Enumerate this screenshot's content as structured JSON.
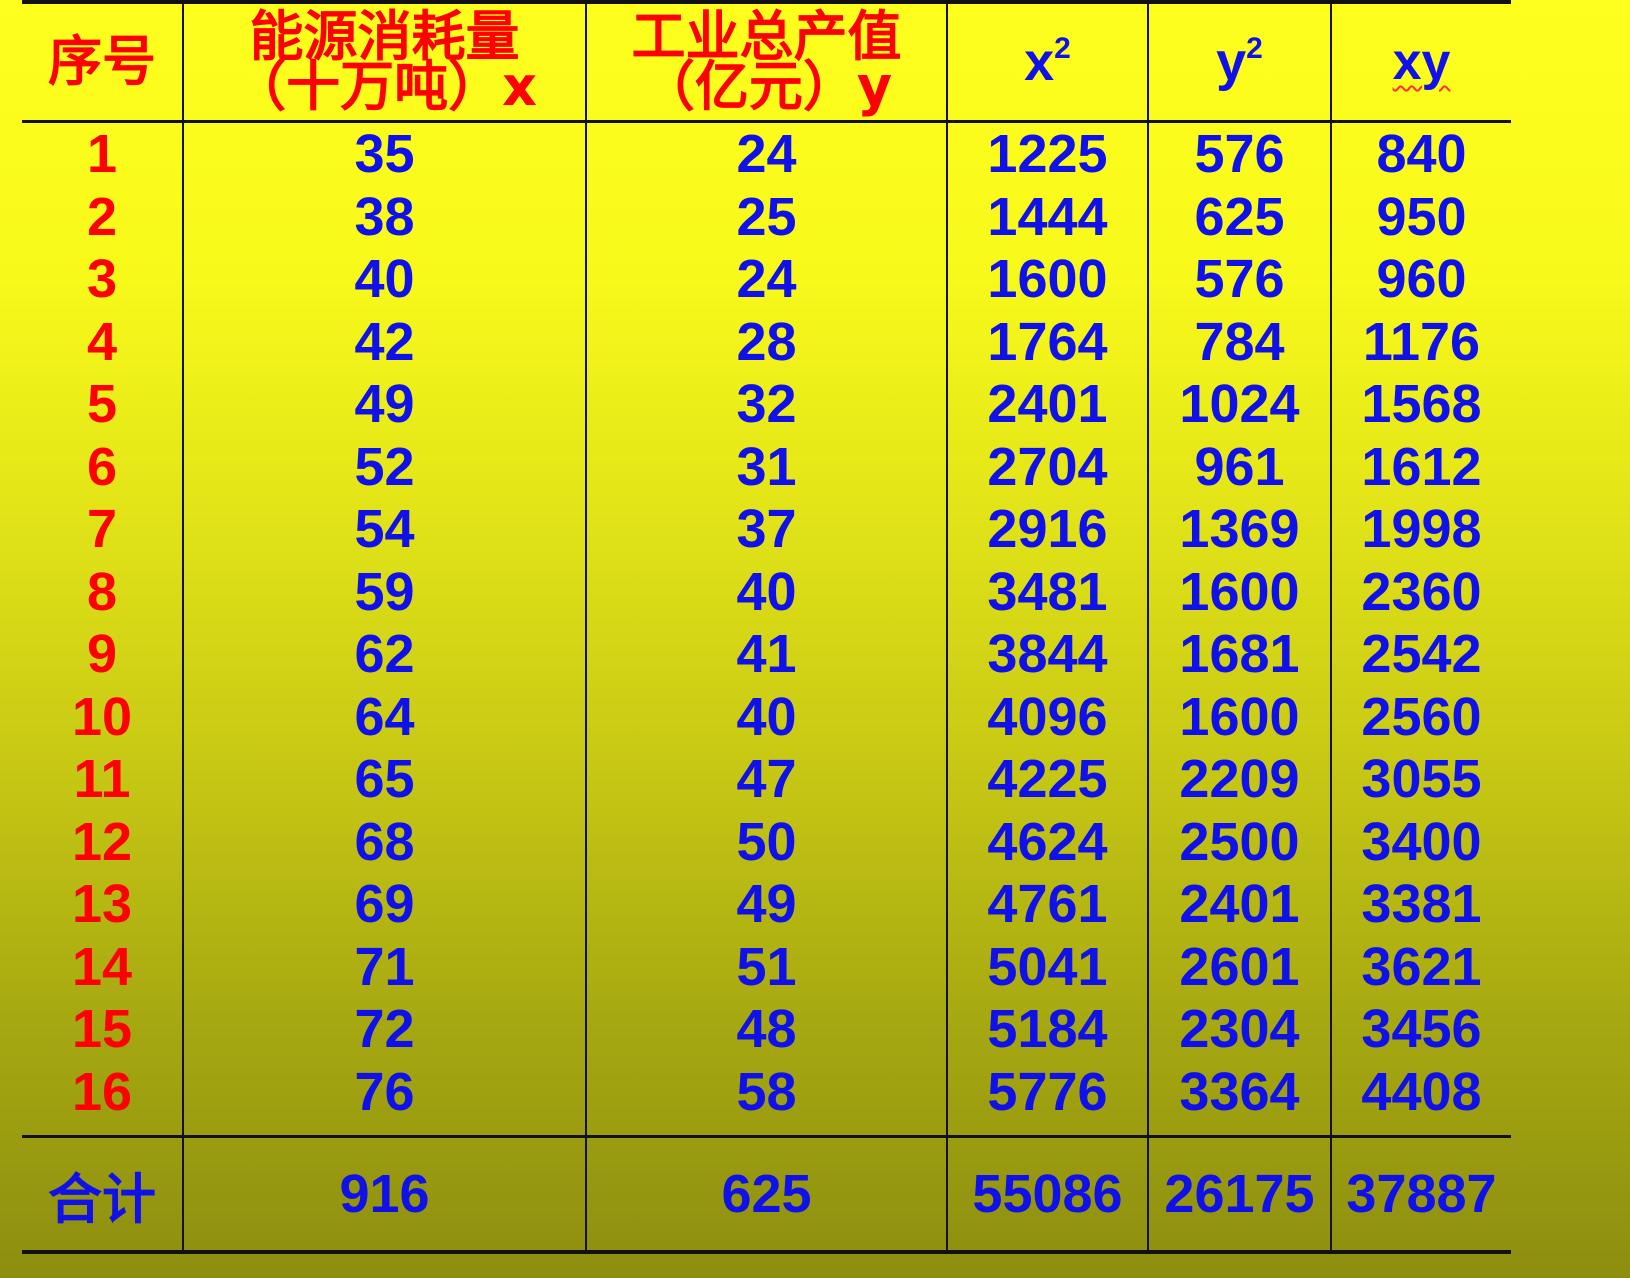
{
  "table": {
    "headers": {
      "index": "序号",
      "x_line1": "能源消耗量",
      "x_line2": "（十万吨）x",
      "y_line1": "工业总产值",
      "y_line2": "（亿元）y",
      "x2_base": "x",
      "x2_exp": "2",
      "y2_base": "y",
      "y2_exp": "2",
      "xy": "xy"
    },
    "rows": [
      {
        "n": "1",
        "x": "35",
        "y": "24",
        "x2": "1225",
        "y2": "576",
        "xy": "840"
      },
      {
        "n": "2",
        "x": "38",
        "y": "25",
        "x2": "1444",
        "y2": "625",
        "xy": "950"
      },
      {
        "n": "3",
        "x": "40",
        "y": "24",
        "x2": "1600",
        "y2": "576",
        "xy": "960"
      },
      {
        "n": "4",
        "x": "42",
        "y": "28",
        "x2": "1764",
        "y2": "784",
        "xy": "1176"
      },
      {
        "n": "5",
        "x": "49",
        "y": "32",
        "x2": "2401",
        "y2": "1024",
        "xy": "1568"
      },
      {
        "n": "6",
        "x": "52",
        "y": "31",
        "x2": "2704",
        "y2": "961",
        "xy": "1612"
      },
      {
        "n": "7",
        "x": "54",
        "y": "37",
        "x2": "2916",
        "y2": "1369",
        "xy": "1998"
      },
      {
        "n": "8",
        "x": "59",
        "y": "40",
        "x2": "3481",
        "y2": "1600",
        "xy": "2360"
      },
      {
        "n": "9",
        "x": "62",
        "y": "41",
        "x2": "3844",
        "y2": "1681",
        "xy": "2542"
      },
      {
        "n": "10",
        "x": "64",
        "y": "40",
        "x2": "4096",
        "y2": "1600",
        "xy": "2560"
      },
      {
        "n": "11",
        "x": "65",
        "y": "47",
        "x2": "4225",
        "y2": "2209",
        "xy": "3055"
      },
      {
        "n": "12",
        "x": "68",
        "y": "50",
        "x2": "4624",
        "y2": "2500",
        "xy": "3400"
      },
      {
        "n": "13",
        "x": "69",
        "y": "49",
        "x2": "4761",
        "y2": "2401",
        "xy": "3381"
      },
      {
        "n": "14",
        "x": "71",
        "y": "51",
        "x2": "5041",
        "y2": "2601",
        "xy": "3621"
      },
      {
        "n": "15",
        "x": "72",
        "y": "48",
        "x2": "5184",
        "y2": "2304",
        "xy": "3456"
      },
      {
        "n": "16",
        "x": "76",
        "y": "58",
        "x2": "5776",
        "y2": "3364",
        "xy": "4408"
      }
    ],
    "total": {
      "label": "合计",
      "x": "916",
      "y": "625",
      "x2": "55086",
      "y2": "26175",
      "xy": "37887"
    }
  },
  "colors": {
    "header_text": "#ff0000",
    "index_text": "#ff0000",
    "value_text": "#1010e8",
    "background_top": "#ffff1e",
    "background_bottom": "#8d8e0f"
  }
}
